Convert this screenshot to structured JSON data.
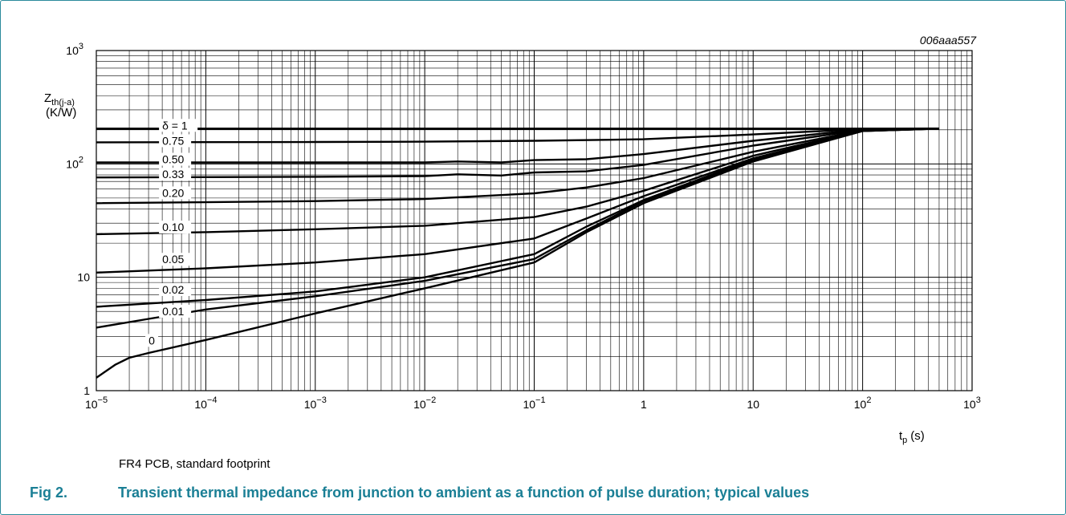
{
  "chart_data": {
    "type": "line",
    "code": "006aaa557",
    "x_scale": "log",
    "y_scale": "log",
    "xlim": [
      1e-05,
      1000
    ],
    "ylim": [
      1,
      1000
    ],
    "grid": true,
    "xlabel": {
      "main": "t",
      "sub": "p",
      "unit": "(s)"
    },
    "ylabel": {
      "main": "Z",
      "sub": "th(j-a)",
      "unit": "(K/W)"
    },
    "x_tick_labels": [
      {
        "v": 1e-05,
        "base": "10",
        "exp": "−5"
      },
      {
        "v": 0.0001,
        "base": "10",
        "exp": "−4"
      },
      {
        "v": 0.001,
        "base": "10",
        "exp": "−3"
      },
      {
        "v": 0.01,
        "base": "10",
        "exp": "−2"
      },
      {
        "v": 0.1,
        "base": "10",
        "exp": "−1"
      },
      {
        "v": 1,
        "base": "1",
        "exp": ""
      },
      {
        "v": 10,
        "base": "10",
        "exp": ""
      },
      {
        "v": 100,
        "base": "10",
        "exp": "2"
      },
      {
        "v": 1000,
        "base": "10",
        "exp": "3"
      }
    ],
    "y_tick_labels": [
      {
        "v": 1,
        "base": "1",
        "exp": ""
      },
      {
        "v": 10,
        "base": "10",
        "exp": ""
      },
      {
        "v": 100,
        "base": "10",
        "exp": "2"
      },
      {
        "v": 1000,
        "base": "10",
        "exp": "3"
      }
    ],
    "series": [
      {
        "name": "δ = 1",
        "label_at": [
          4e-05,
          205
        ],
        "points": [
          [
            1e-05,
            205
          ],
          [
            500,
            205
          ]
        ]
      },
      {
        "name": "0.75",
        "label_at": [
          4e-05,
          150
        ],
        "points": [
          [
            1e-05,
            155
          ],
          [
            0.001,
            156
          ],
          [
            0.01,
            157
          ],
          [
            0.1,
            160
          ],
          [
            1,
            165
          ],
          [
            10,
            182
          ],
          [
            100,
            203
          ],
          [
            500,
            205
          ]
        ]
      },
      {
        "name": "0.50",
        "label_at": [
          4e-05,
          103
        ],
        "points": [
          [
            1e-05,
            103
          ],
          [
            0.001,
            103
          ],
          [
            0.01,
            103
          ],
          [
            0.02,
            105
          ],
          [
            0.05,
            103
          ],
          [
            0.1,
            108
          ],
          [
            0.3,
            110
          ],
          [
            1,
            122
          ],
          [
            10,
            160
          ],
          [
            100,
            202
          ],
          [
            500,
            205
          ]
        ]
      },
      {
        "name": "0.33",
        "label_at": [
          4e-05,
          76
        ],
        "points": [
          [
            1e-05,
            76
          ],
          [
            0.001,
            77
          ],
          [
            0.01,
            78
          ],
          [
            0.02,
            81
          ],
          [
            0.05,
            79
          ],
          [
            0.1,
            84
          ],
          [
            0.3,
            86
          ],
          [
            1,
            98
          ],
          [
            10,
            145
          ],
          [
            100,
            200
          ],
          [
            500,
            205
          ]
        ]
      },
      {
        "name": "0.20",
        "label_at": [
          4e-05,
          52
        ],
        "points": [
          [
            1e-05,
            45
          ],
          [
            0.001,
            47
          ],
          [
            0.01,
            49
          ],
          [
            0.1,
            55
          ],
          [
            0.3,
            62
          ],
          [
            1,
            75
          ],
          [
            10,
            128
          ],
          [
            100,
            198
          ],
          [
            500,
            205
          ]
        ]
      },
      {
        "name": "0.10",
        "label_at": [
          4e-05,
          26
        ],
        "points": [
          [
            1e-05,
            24
          ],
          [
            0.0001,
            25
          ],
          [
            0.001,
            26.5
          ],
          [
            0.01,
            28.5
          ],
          [
            0.1,
            34
          ],
          [
            0.3,
            42
          ],
          [
            1,
            58
          ],
          [
            10,
            118
          ],
          [
            100,
            197
          ],
          [
            500,
            205
          ]
        ]
      },
      {
        "name": "0.05",
        "label_at": [
          4e-05,
          13.5
        ],
        "points": [
          [
            1e-05,
            11
          ],
          [
            0.0001,
            12
          ],
          [
            0.001,
            13.5
          ],
          [
            0.01,
            16
          ],
          [
            0.1,
            22
          ],
          [
            0.3,
            33
          ],
          [
            1,
            52
          ],
          [
            10,
            112
          ],
          [
            100,
            196
          ],
          [
            500,
            205
          ]
        ]
      },
      {
        "name": "0.02",
        "label_at": [
          4e-05,
          7.3
        ],
        "points": [
          [
            1e-05,
            5.5
          ],
          [
            0.0001,
            6.3
          ],
          [
            0.001,
            7.5
          ],
          [
            0.01,
            10
          ],
          [
            0.1,
            16
          ],
          [
            0.3,
            28
          ],
          [
            1,
            48
          ],
          [
            10,
            110
          ],
          [
            100,
            195
          ],
          [
            500,
            205
          ]
        ]
      },
      {
        "name": "0.01",
        "label_at": [
          4e-05,
          4.7
        ],
        "points": [
          [
            1e-05,
            3.6
          ],
          [
            3e-05,
            4.3
          ],
          [
            0.0001,
            5.2
          ],
          [
            0.001,
            6.8
          ],
          [
            0.01,
            9.3
          ],
          [
            0.1,
            14.5
          ],
          [
            0.3,
            26
          ],
          [
            1,
            47
          ],
          [
            10,
            108
          ],
          [
            100,
            195
          ],
          [
            500,
            205
          ]
        ]
      },
      {
        "name": "0",
        "label_at": [
          3e-05,
          2.6
        ],
        "points": [
          [
            1e-05,
            1.3
          ],
          [
            1.5e-05,
            1.7
          ],
          [
            2e-05,
            1.95
          ],
          [
            3e-05,
            2.15
          ],
          [
            0.0001,
            2.8
          ],
          [
            0.001,
            4.8
          ],
          [
            0.01,
            8
          ],
          [
            0.1,
            13.5
          ],
          [
            0.3,
            25
          ],
          [
            1,
            45
          ],
          [
            10,
            105
          ],
          [
            100,
            195
          ],
          [
            500,
            205
          ]
        ]
      }
    ]
  },
  "note": "FR4 PCB, standard footprint",
  "caption": {
    "fig": "Fig 2.",
    "text": "Transient thermal impedance from junction to ambient as a function of pulse duration; typical values"
  }
}
